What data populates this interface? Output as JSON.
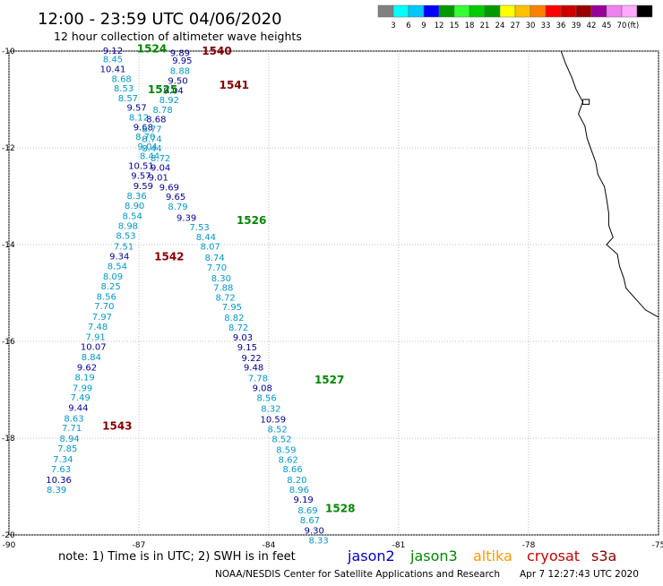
{
  "header": {
    "title": "12:00 - 23:59 UTC 04/06/2020",
    "subtitle": "12 hour collection of altimeter wave heights"
  },
  "scale": {
    "colors": [
      "#808080",
      "#00ffff",
      "#00c8ff",
      "#0000ff",
      "#009900",
      "#33ff33",
      "#00cc00",
      "#009900",
      "#ffff00",
      "#ffc000",
      "#ff8000",
      "#ff0000",
      "#cc0000",
      "#990000",
      "#990099",
      "#ee82ee",
      "#ffaaff",
      "#000000"
    ],
    "labels": [
      "3",
      "6",
      "9",
      "12",
      "15",
      "18",
      "21",
      "24",
      "27",
      "30",
      "33",
      "36",
      "39",
      "42",
      "45",
      "70",
      "(ft)"
    ]
  },
  "footer": {
    "note": "note: 1) Time is in UTC; 2) SWH is in feet",
    "credit": "NOAA/NESDIS Center for Satellite Applications and Research",
    "timestamp": "Apr  7 12:27:43 UTC 2020",
    "legend": [
      {
        "name": "jason2",
        "color": "#0000cc"
      },
      {
        "name": "jason3",
        "color": "#008800"
      },
      {
        "name": "altika",
        "color": "#ff9900"
      },
      {
        "name": "cryosat",
        "color": "#cc0000"
      },
      {
        "name": "s3a",
        "color": "#880000"
      }
    ]
  },
  "chart_data": {
    "type": "scatter",
    "xlim": [
      -90,
      -75
    ],
    "ylim": [
      -20,
      -10
    ],
    "x_ticks": [
      "-90",
      "-87",
      "-84",
      "-81",
      "-78",
      "-75"
    ],
    "y_ticks": [
      "-10",
      "-12",
      "-14",
      "-16",
      "-18",
      "-20"
    ],
    "pass_labels": [
      {
        "text": "1524",
        "x": -86.7,
        "y": -9.95,
        "color": "#008800"
      },
      {
        "text": "1540",
        "x": -85.2,
        "y": -10.0,
        "color": "#880000"
      },
      {
        "text": "1541",
        "x": -84.8,
        "y": -10.7,
        "color": "#880000"
      },
      {
        "text": "1525",
        "x": -86.45,
        "y": -10.8,
        "color": "#008800"
      },
      {
        "text": "1526",
        "x": -84.4,
        "y": -13.5,
        "color": "#008800"
      },
      {
        "text": "1542",
        "x": -86.3,
        "y": -14.25,
        "color": "#880000"
      },
      {
        "text": "1527",
        "x": -82.6,
        "y": -16.8,
        "color": "#008800"
      },
      {
        "text": "1543",
        "x": -87.5,
        "y": -17.75,
        "color": "#880000"
      },
      {
        "text": "1528",
        "x": -82.35,
        "y": -19.45,
        "color": "#008800"
      }
    ],
    "series": [
      {
        "name": "track-1524",
        "points": [
          {
            "x": -87.6,
            "y": -10.0,
            "v": "9.12",
            "c": "#000099"
          },
          {
            "x": -87.6,
            "y": -10.18,
            "v": "8.45",
            "c": "#0099cc"
          },
          {
            "x": -87.6,
            "y": -10.38,
            "v": "10.41",
            "c": "#000099"
          },
          {
            "x": -87.4,
            "y": -10.58,
            "v": "8.68",
            "c": "#0099cc"
          },
          {
            "x": -87.35,
            "y": -10.78,
            "v": "8.53",
            "c": "#0099cc"
          },
          {
            "x": -87.25,
            "y": -10.98,
            "v": "8.57",
            "c": "#0099cc"
          },
          {
            "x": -87.05,
            "y": -11.18,
            "v": "9.57",
            "c": "#000099"
          },
          {
            "x": -87.0,
            "y": -11.38,
            "v": "8.12",
            "c": "#0099cc"
          },
          {
            "x": -86.9,
            "y": -11.58,
            "v": "9.68",
            "c": "#000099"
          },
          {
            "x": -86.85,
            "y": -11.78,
            "v": "8.70",
            "c": "#0099cc"
          },
          {
            "x": -86.8,
            "y": -11.98,
            "v": "9.04",
            "c": "#0099cc"
          },
          {
            "x": -86.75,
            "y": -12.18,
            "v": "8.44",
            "c": "#0099cc"
          },
          {
            "x": -86.95,
            "y": -12.38,
            "v": "10.51",
            "c": "#000099"
          },
          {
            "x": -86.95,
            "y": -12.58,
            "v": "9.57",
            "c": "#000099"
          },
          {
            "x": -86.9,
            "y": -12.8,
            "v": "9.59",
            "c": "#000099"
          },
          {
            "x": -87.05,
            "y": -13.0,
            "v": "8.36",
            "c": "#0099cc"
          },
          {
            "x": -87.1,
            "y": -13.2,
            "v": "8.90",
            "c": "#0099cc"
          },
          {
            "x": -87.15,
            "y": -13.42,
            "v": "8.54",
            "c": "#0099cc"
          },
          {
            "x": -87.25,
            "y": -13.62,
            "v": "8.98",
            "c": "#0099cc"
          },
          {
            "x": -87.3,
            "y": -13.82,
            "v": "8.53",
            "c": "#0099cc"
          },
          {
            "x": -87.35,
            "y": -14.05,
            "v": "7.51",
            "c": "#0099cc"
          },
          {
            "x": -87.45,
            "y": -14.25,
            "v": "9.34",
            "c": "#000099"
          },
          {
            "x": -87.5,
            "y": -14.45,
            "v": "8.54",
            "c": "#0099cc"
          },
          {
            "x": -87.6,
            "y": -14.67,
            "v": "8.09",
            "c": "#0099cc"
          },
          {
            "x": -87.65,
            "y": -14.87,
            "v": "8.25",
            "c": "#0099cc"
          },
          {
            "x": -87.75,
            "y": -15.08,
            "v": "8.56",
            "c": "#0099cc"
          },
          {
            "x": -87.8,
            "y": -15.28,
            "v": "7.70",
            "c": "#0099cc"
          },
          {
            "x": -87.85,
            "y": -15.5,
            "v": "7.97",
            "c": "#0099cc"
          },
          {
            "x": -87.95,
            "y": -15.7,
            "v": "7.48",
            "c": "#0099cc"
          },
          {
            "x": -88.0,
            "y": -15.92,
            "v": "7.91",
            "c": "#0099cc"
          },
          {
            "x": -88.05,
            "y": -16.12,
            "v": "10.07",
            "c": "#000099"
          },
          {
            "x": -88.1,
            "y": -16.33,
            "v": "8.84",
            "c": "#0099cc"
          },
          {
            "x": -88.2,
            "y": -16.55,
            "v": "9.62",
            "c": "#000099"
          },
          {
            "x": -88.25,
            "y": -16.75,
            "v": "8.19",
            "c": "#0099cc"
          },
          {
            "x": -88.3,
            "y": -16.97,
            "v": "7.99",
            "c": "#0099cc"
          },
          {
            "x": -88.35,
            "y": -17.17,
            "v": "7.49",
            "c": "#0099cc"
          },
          {
            "x": -88.4,
            "y": -17.38,
            "v": "9.44",
            "c": "#000099"
          },
          {
            "x": -88.5,
            "y": -17.6,
            "v": "8.63",
            "c": "#0099cc"
          },
          {
            "x": -88.55,
            "y": -17.8,
            "v": "7.71",
            "c": "#0099cc"
          },
          {
            "x": -88.6,
            "y": -18.02,
            "v": "8.94",
            "c": "#0099cc"
          },
          {
            "x": -88.65,
            "y": -18.22,
            "v": "7.85",
            "c": "#0099cc"
          },
          {
            "x": -88.75,
            "y": -18.44,
            "v": "7.34",
            "c": "#0099cc"
          },
          {
            "x": -88.8,
            "y": -18.65,
            "v": "7.63",
            "c": "#0099cc"
          },
          {
            "x": -88.85,
            "y": -18.87,
            "v": "10.36",
            "c": "#000099"
          },
          {
            "x": -88.9,
            "y": -19.07,
            "v": "8.39",
            "c": "#0099cc"
          }
        ]
      },
      {
        "name": "track-1525",
        "points": [
          {
            "x": -86.05,
            "y": -10.05,
            "v": "9.89",
            "c": "#000099"
          },
          {
            "x": -86.0,
            "y": -10.2,
            "v": "9.95",
            "c": "#000099"
          },
          {
            "x": -86.05,
            "y": -10.42,
            "v": "8.88",
            "c": "#0099cc"
          },
          {
            "x": -86.1,
            "y": -10.62,
            "v": "9.50",
            "c": "#000099"
          },
          {
            "x": -86.2,
            "y": -10.82,
            "v": "9.04",
            "c": "#000099"
          },
          {
            "x": -86.3,
            "y": -11.02,
            "v": "8.92",
            "c": "#0099cc"
          },
          {
            "x": -86.45,
            "y": -11.22,
            "v": "8.78",
            "c": "#0099cc"
          },
          {
            "x": -86.6,
            "y": -11.42,
            "v": "8.68",
            "c": "#000099"
          },
          {
            "x": -86.7,
            "y": -11.62,
            "v": "8.77",
            "c": "#0099cc"
          },
          {
            "x": -86.7,
            "y": -11.82,
            "v": "8.74",
            "c": "#0099cc"
          },
          {
            "x": -86.7,
            "y": -12.02,
            "v": "8.44",
            "c": "#0099cc"
          },
          {
            "x": -86.5,
            "y": -12.22,
            "v": "8.72",
            "c": "#0099cc"
          },
          {
            "x": -86.5,
            "y": -12.42,
            "v": "9.04",
            "c": "#000099"
          },
          {
            "x": -86.55,
            "y": -12.62,
            "v": "9.01",
            "c": "#000099"
          },
          {
            "x": -86.3,
            "y": -12.82,
            "v": "9.69",
            "c": "#000099"
          },
          {
            "x": -86.15,
            "y": -13.02,
            "v": "9.65",
            "c": "#000099"
          },
          {
            "x": -86.1,
            "y": -13.22,
            "v": "8.79",
            "c": "#0099cc"
          },
          {
            "x": -85.9,
            "y": -13.45,
            "v": "9.39",
            "c": "#000099"
          },
          {
            "x": -85.6,
            "y": -13.65,
            "v": "7.53",
            "c": "#0099cc"
          },
          {
            "x": -85.45,
            "y": -13.85,
            "v": "8.44",
            "c": "#0099cc"
          },
          {
            "x": -85.35,
            "y": -14.05,
            "v": "8.07",
            "c": "#0099cc"
          },
          {
            "x": -85.25,
            "y": -14.28,
            "v": "8.74",
            "c": "#0099cc"
          },
          {
            "x": -85.2,
            "y": -14.48,
            "v": "7.70",
            "c": "#0099cc"
          },
          {
            "x": -85.1,
            "y": -14.7,
            "v": "8.30",
            "c": "#0099cc"
          },
          {
            "x": -85.05,
            "y": -14.9,
            "v": "7.88",
            "c": "#0099cc"
          },
          {
            "x": -85.0,
            "y": -15.1,
            "v": "8.72",
            "c": "#0099cc"
          },
          {
            "x": -84.85,
            "y": -15.3,
            "v": "7.95",
            "c": "#0099cc"
          },
          {
            "x": -84.8,
            "y": -15.52,
            "v": "8.82",
            "c": "#0099cc"
          },
          {
            "x": -84.7,
            "y": -15.72,
            "v": "8.72",
            "c": "#0099cc"
          },
          {
            "x": -84.6,
            "y": -15.93,
            "v": "9.03",
            "c": "#000099"
          },
          {
            "x": -84.5,
            "y": -16.13,
            "v": "9.15",
            "c": "#000099"
          },
          {
            "x": -84.4,
            "y": -16.35,
            "v": "9.22",
            "c": "#000099"
          },
          {
            "x": -84.35,
            "y": -16.55,
            "v": "9.48",
            "c": "#000099"
          },
          {
            "x": -84.25,
            "y": -16.77,
            "v": "7.78",
            "c": "#0099cc"
          },
          {
            "x": -84.15,
            "y": -16.97,
            "v": "9.08",
            "c": "#000099"
          },
          {
            "x": -84.05,
            "y": -17.18,
            "v": "8.56",
            "c": "#0099cc"
          },
          {
            "x": -83.95,
            "y": -17.4,
            "v": "8.32",
            "c": "#0099cc"
          },
          {
            "x": -83.9,
            "y": -17.62,
            "v": "10.59",
            "c": "#000099"
          },
          {
            "x": -83.8,
            "y": -17.82,
            "v": "8.52",
            "c": "#0099cc"
          },
          {
            "x": -83.7,
            "y": -18.03,
            "v": "8.52",
            "c": "#0099cc"
          },
          {
            "x": -83.6,
            "y": -18.25,
            "v": "8.59",
            "c": "#0099cc"
          },
          {
            "x": -83.55,
            "y": -18.45,
            "v": "8.62",
            "c": "#0099cc"
          },
          {
            "x": -83.45,
            "y": -18.65,
            "v": "8.66",
            "c": "#0099cc"
          },
          {
            "x": -83.35,
            "y": -18.87,
            "v": "8.20",
            "c": "#0099cc"
          },
          {
            "x": -83.3,
            "y": -19.07,
            "v": "8.96",
            "c": "#0099cc"
          },
          {
            "x": -83.2,
            "y": -19.28,
            "v": "9.19",
            "c": "#000099"
          },
          {
            "x": -83.1,
            "y": -19.5,
            "v": "8.69",
            "c": "#0099cc"
          },
          {
            "x": -83.05,
            "y": -19.7,
            "v": "8.67",
            "c": "#0099cc"
          },
          {
            "x": -82.95,
            "y": -19.92,
            "v": "9.30",
            "c": "#000099"
          },
          {
            "x": -82.85,
            "y": -20.12,
            "v": "8.33",
            "c": "#0099cc"
          }
        ]
      }
    ],
    "coastline": [
      [
        -77.25,
        -10.0
      ],
      [
        -77.15,
        -10.25
      ],
      [
        -77.0,
        -10.55
      ],
      [
        -76.9,
        -10.8
      ],
      [
        -76.75,
        -11.05
      ],
      [
        -76.85,
        -11.3
      ],
      [
        -76.7,
        -11.55
      ],
      [
        -76.65,
        -11.8
      ],
      [
        -76.55,
        -12.05
      ],
      [
        -76.45,
        -12.3
      ],
      [
        -76.4,
        -12.55
      ],
      [
        -76.25,
        -12.8
      ],
      [
        -76.2,
        -13.05
      ],
      [
        -76.15,
        -13.35
      ],
      [
        -76.15,
        -13.6
      ],
      [
        -76.05,
        -13.85
      ],
      [
        -76.2,
        -14.0
      ],
      [
        -75.95,
        -14.2
      ],
      [
        -75.9,
        -14.45
      ],
      [
        -75.8,
        -14.7
      ],
      [
        -75.75,
        -14.9
      ],
      [
        -75.6,
        -15.05
      ],
      [
        -75.45,
        -15.2
      ],
      [
        -75.3,
        -15.35
      ],
      [
        -75.1,
        -15.45
      ],
      [
        -75.0,
        -15.5
      ]
    ],
    "island": [
      [
        -76.75,
        -11.0
      ],
      [
        -76.6,
        -11.0
      ],
      [
        -76.6,
        -11.1
      ],
      [
        -76.75,
        -11.1
      ],
      [
        -76.75,
        -11.0
      ]
    ]
  }
}
